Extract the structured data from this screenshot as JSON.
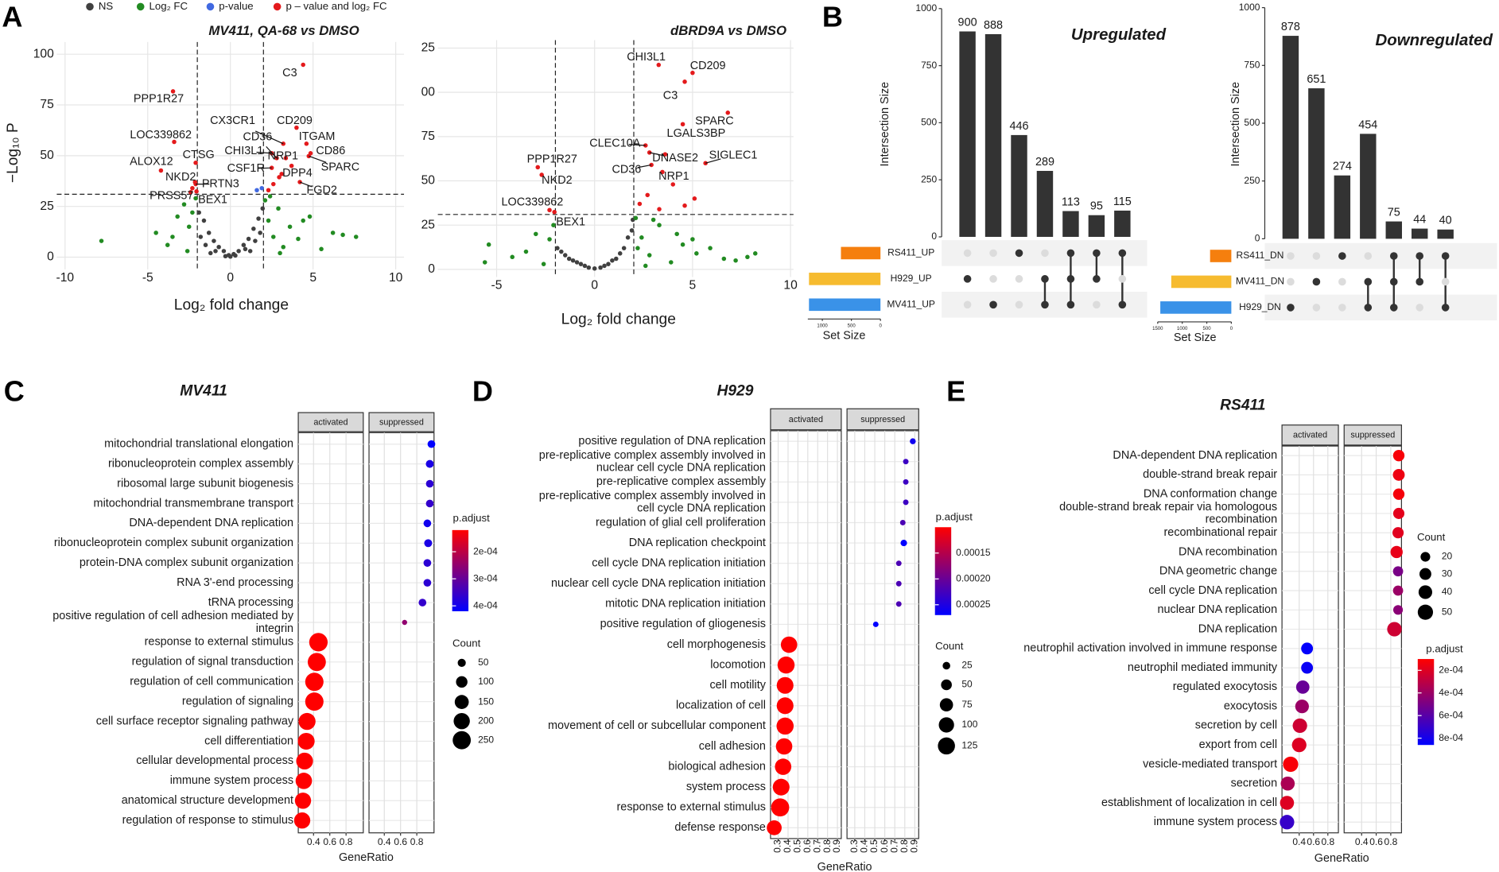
{
  "panel_labels": [
    "A",
    "B",
    "C",
    "D",
    "E"
  ],
  "chart_data": [
    {
      "type": "volcano",
      "title": "MV411, QA-68 vs DMSO",
      "xlabel": "Log₂ fold change",
      "ylabel": "−Log₁₀ P",
      "xlim": [
        -10.5,
        10.5
      ],
      "ylim": [
        -6,
        106
      ],
      "xticks": [
        -10,
        -5,
        0,
        5,
        10
      ],
      "yticks": [
        0,
        25,
        50,
        75,
        100
      ],
      "vlines": [
        -2,
        2
      ],
      "hline": 31,
      "grid": true,
      "legend": "top",
      "series": [
        {
          "name": "NS",
          "color": "#404040",
          "x": [
            -1.9,
            -1.6,
            -1.3,
            -1,
            -0.7,
            -0.4,
            -0.1,
            0.2,
            0.5,
            0.8,
            1.1,
            1.4,
            1.7,
            1.95,
            -1.5,
            -0.9,
            -0.3,
            0.3,
            0.9,
            1.5,
            -1.8,
            1.8,
            0,
            -1.2,
            1.2
          ],
          "values": [
            22,
            18,
            12,
            8,
            5,
            3,
            1,
            1.5,
            3,
            6,
            9,
            14,
            19,
            24,
            6,
            3,
            0.5,
            0.8,
            4,
            8,
            10,
            12,
            0.3,
            2,
            3
          ]
        },
        {
          "name": "Log₂ FC",
          "color": "#228b22",
          "x": [
            -7.8,
            -4.5,
            -3.8,
            -3.2,
            -2.8,
            -2.5,
            -2.3,
            -2.1,
            2.1,
            2.3,
            2.6,
            2.9,
            3.2,
            3.6,
            4.1,
            4.8,
            5.5,
            6.2,
            6.8,
            7.6,
            -2.6,
            3.0,
            4.4,
            2.4,
            -3.5
          ],
          "values": [
            8,
            12,
            6,
            20,
            26,
            15,
            22,
            29,
            28,
            18,
            10,
            24,
            5,
            15,
            9,
            20,
            4,
            12,
            11,
            10,
            3,
            2,
            18,
            30,
            10
          ]
        },
        {
          "name": "p-value",
          "color": "#4169e1",
          "x": [
            1.9,
            1.6
          ],
          "values": [
            34,
            33
          ]
        },
        {
          "name": "p – value and log₂ FC",
          "color": "#e41a1c",
          "x": [
            4.4,
            -3.47,
            -3.4,
            -4.2,
            -2.1,
            -2.14,
            -2.1,
            -2.4,
            -2.05,
            3.2,
            4.0,
            4.6,
            2.8,
            2.5,
            3.35,
            4.85,
            2.5,
            4.74,
            2.95,
            4.2,
            2.3,
            2.6,
            3.1,
            3.7,
            -2.3
          ],
          "values": [
            94.8,
            81.7,
            56.8,
            42.7,
            46.5,
            37,
            36,
            32,
            32.4,
            55.9,
            63.8,
            55.9,
            48.8,
            51.2,
            48.8,
            51.2,
            44,
            49.8,
            39.4,
            37,
            33,
            36,
            41,
            45,
            34
          ],
          "labels": [
            "C3",
            "PPP1R27",
            "LOC339862",
            "ALOX12",
            "CTSG",
            "NKD2",
            "PRTN3",
            "PRSS57",
            "BEX1",
            "CX3CR1",
            "CD209",
            "ITGAM",
            "CD36",
            "CHI3L1",
            "NRP1",
            "CD86",
            "CSF1R",
            "SPARC",
            "DPP4",
            "FGD2",
            null,
            null,
            null,
            null,
            null
          ]
        }
      ]
    },
    {
      "type": "volcano",
      "title": "dBRD9A vs DMSO",
      "xlabel": "Log₂ fold change",
      "xlim": [
        -8,
        10.15
      ],
      "ylim": [
        -4.3,
        129.5
      ],
      "xticks": [
        -5,
        0,
        5,
        10
      ],
      "yticks": [
        0,
        25,
        50,
        75,
        {
          "value": 100,
          "label": "00"
        },
        {
          "value": 125,
          "label": "25"
        }
      ],
      "vlines": [
        -2,
        2
      ],
      "hline": 31,
      "grid": true,
      "series": [
        {
          "color": "#404040",
          "x": [
            -1.9,
            -1.5,
            -1.1,
            -0.7,
            -0.3,
            0,
            0.3,
            0.7,
            1.1,
            1.5,
            1.9,
            -1.7,
            -0.9,
            0.9,
            1.7,
            -0.5,
            0.5,
            1.3,
            -1.3,
            1.95
          ],
          "values": [
            12,
            8,
            5,
            3,
            1,
            0.5,
            1,
            3,
            6,
            12,
            22,
            10,
            4,
            5,
            18,
            2,
            2,
            9,
            6,
            28
          ]
        },
        {
          "color": "#228b22",
          "x": [
            -5.4,
            -4.2,
            -3.5,
            -3.0,
            -2.6,
            -2.3,
            -2.1,
            2.1,
            2.4,
            2.8,
            3.3,
            3.9,
            4.5,
            5.2,
            5.9,
            6.6,
            7.2,
            7.8,
            8.2,
            -5.6,
            2.2,
            3.0,
            4.2,
            2.6,
            5.0
          ],
          "values": [
            14,
            7,
            10,
            20,
            3,
            17,
            25,
            29,
            18,
            8,
            25,
            4,
            14,
            9,
            12,
            6,
            5,
            7,
            9,
            4,
            12,
            28,
            20,
            2,
            17
          ]
        },
        {
          "color": "#e41a1c",
          "x": [
            3.27,
            5.0,
            4.6,
            6.8,
            4.5,
            2.6,
            2.8,
            5.66,
            2.9,
            3.46,
            -2.9,
            -2.7,
            -2.3,
            -2.05,
            2.3,
            2.7,
            3.3,
            4.0,
            4.6,
            5.1,
            3.6
          ],
          "values": [
            115.5,
            111,
            106,
            88.5,
            82,
            70,
            66,
            60,
            59,
            55,
            57.7,
            53.4,
            33.5,
            32.4,
            37,
            42,
            34,
            48,
            36,
            40,
            65
          ],
          "labels": [
            "CHI3L1",
            "CD209",
            "C3",
            "SPARC",
            "LGALS3BP",
            "CLEC10A",
            "DNASE2",
            "SIGLEC1",
            "CD36",
            "NRP1",
            "PPP1R27",
            "NKD2",
            "LOC339862",
            "BEX1",
            null,
            null,
            null,
            null,
            null,
            null,
            null
          ]
        }
      ]
    },
    {
      "type": "upset",
      "title": "Upregulated",
      "ylabel": "Intersection Size",
      "xlabel": "Set Size",
      "values": [
        900,
        888,
        446,
        289,
        113,
        95,
        115
      ],
      "ylim": [
        0,
        1000
      ],
      "yticks": [
        0,
        250,
        500,
        750,
        1000
      ],
      "sets": [
        "RS411_UP",
        "H929_UP",
        "MV411_UP"
      ],
      "set_colors": [
        "#f57f0e",
        "#f6bb2f",
        "#3a92e8"
      ],
      "set_sizes": [
        680,
        1230,
        1230
      ],
      "xlim": [
        0,
        1250
      ],
      "xticks": [
        0,
        500,
        1000
      ],
      "bar_color": "#333333",
      "intersections": [
        [
          "H929_UP"
        ],
        [
          "MV411_UP"
        ],
        [
          "RS411_UP"
        ],
        [
          "H929_UP",
          "MV411_UP"
        ],
        [
          "RS411_UP",
          "H929_UP",
          "MV411_UP"
        ],
        [
          "RS411_UP",
          "H929_UP"
        ],
        [
          "RS411_UP",
          "MV411_UP"
        ]
      ]
    },
    {
      "type": "upset",
      "title": "Downregulated",
      "ylabel": "Intersection Size",
      "xlabel": "Set Size",
      "values": [
        878,
        651,
        274,
        454,
        75,
        44,
        40
      ],
      "ylim": [
        0,
        1000
      ],
      "yticks": [
        0,
        250,
        500,
        750,
        1000
      ],
      "sets": [
        "RS411_DN",
        "MV411_DN",
        "H929_DN"
      ],
      "set_colors": [
        "#f57f0e",
        "#f6bb2f",
        "#3a92e8"
      ],
      "set_sizes": [
        433,
        1224,
        1447
      ],
      "xlim": [
        0,
        1500
      ],
      "xticks": [
        0,
        500,
        1000,
        1500
      ],
      "bar_color": "#333333",
      "intersections": [
        [
          "H929_DN"
        ],
        [
          "MV411_DN"
        ],
        [
          "RS411_DN"
        ],
        [
          "MV411_DN",
          "H929_DN"
        ],
        [
          "RS411_DN",
          "MV411_DN",
          "H929_DN"
        ],
        [
          "RS411_DN",
          "MV411_DN"
        ],
        [
          "RS411_DN",
          "H929_DN"
        ]
      ]
    },
    {
      "type": "dotplot",
      "title": "MV411",
      "facets": [
        "activated",
        "suppressed"
      ],
      "xlabel": "GeneRatio",
      "xlim": [
        0.212,
        1.012
      ],
      "xticks": [
        0.4,
        0.6,
        0.8
      ],
      "terms": [
        "mitochondrial translational elongation",
        "ribonucleoprotein complex assembly",
        "ribosomal large subunit biogenesis",
        "mitochondrial transmembrane transport",
        "DNA-dependent DNA replication",
        "ribonucleoprotein complex subunit organization",
        "protein-DNA complex subunit organization",
        "RNA 3'-end processing",
        "tRNA processing",
        "positive regulation of cell adhesion mediated by\nintegrin",
        "response to external stimulus",
        "regulation of signal transduction",
        "regulation of cell communication",
        "regulation of signaling",
        "cell surface receptor signaling pathway",
        "cell differentiation",
        "cellular developmental process",
        "immune system process",
        "anatomical structure development",
        "regulation of response to stimulus"
      ],
      "groups": [
        "suppressed",
        "suppressed",
        "suppressed",
        "suppressed",
        "suppressed",
        "suppressed",
        "suppressed",
        "suppressed",
        "suppressed",
        "suppressed",
        "activated",
        "activated",
        "activated",
        "activated",
        "activated",
        "activated",
        "activated",
        "activated",
        "activated",
        "activated"
      ],
      "gene_ratio": [
        0.98,
        0.96,
        0.96,
        0.96,
        0.93,
        0.94,
        0.93,
        0.93,
        0.87,
        0.65,
        0.46,
        0.44,
        0.41,
        0.41,
        0.32,
        0.31,
        0.29,
        0.28,
        0.27,
        0.26
      ],
      "count": [
        45,
        48,
        45,
        45,
        45,
        48,
        45,
        45,
        45,
        20,
        260,
        250,
        255,
        255,
        220,
        215,
        215,
        205,
        200,
        200
      ],
      "p_adjust": [
        0.00042,
        0.00039,
        0.00037,
        0.00036,
        0.0004,
        0.00039,
        0.00037,
        0.00037,
        0.00036,
        0.00025,
        0.00012,
        0.00012,
        0.00012,
        0.00012,
        0.00012,
        0.00012,
        0.00012,
        0.00012,
        0.00012,
        0.00012
      ],
      "size_legend": {
        "title": "Count",
        "values": [
          50,
          100,
          150,
          200,
          250
        ]
      },
      "color_legend": {
        "title": "p.adjust",
        "lim": [
          0.00012,
          0.00042
        ],
        "low_color": "#ff0000",
        "high_color": "#0000ff",
        "ticks": [
          {
            "value": 0.0002,
            "label": "2e-04"
          },
          {
            "value": 0.0003,
            "label": "3e-04"
          },
          {
            "value": 0.0004,
            "label": "4e-04"
          }
        ]
      }
    },
    {
      "type": "dotplot",
      "title": "H929",
      "facets": [
        "activated",
        "suppressed"
      ],
      "xlabel": "GeneRatio",
      "xlim": [
        0.2226,
        0.939
      ],
      "xticks": [
        0.3,
        0.4,
        0.5,
        0.6,
        0.7,
        0.8,
        0.9
      ],
      "rotate_ticks": true,
      "terms": [
        "positive regulation of DNA replication",
        "pre-replicative complex assembly involved in\nnuclear cell cycle DNA replication",
        "pre-replicative complex assembly",
        "pre-replicative complex assembly involved in\ncell cycle DNA replication",
        "regulation of glial cell proliferation",
        "DNA replication checkpoint",
        "cell cycle DNA replication initiation",
        "nuclear cell cycle DNA replication initiation",
        "mitotic DNA replication initiation",
        "positive regulation of gliogenesis",
        "cell morphogenesis",
        "locomotion",
        "cell motility",
        "localization of cell",
        "movement of cell or subcellular component",
        "cell adhesion",
        "biological adhesion",
        "system process",
        "response to external stimulus",
        "defense response"
      ],
      "groups": [
        "suppressed",
        "suppressed",
        "suppressed",
        "suppressed",
        "suppressed",
        "suppressed",
        "suppressed",
        "suppressed",
        "suppressed",
        "suppressed",
        "activated",
        "activated",
        "activated",
        "activated",
        "activated",
        "activated",
        "activated",
        "activated",
        "activated",
        "activated"
      ],
      "gene_ratio": [
        0.88,
        0.81,
        0.81,
        0.81,
        0.78,
        0.79,
        0.74,
        0.74,
        0.74,
        0.51,
        0.41,
        0.38,
        0.37,
        0.37,
        0.37,
        0.36,
        0.35,
        0.33,
        0.32,
        0.26
      ],
      "count": [
        15,
        13,
        13,
        13,
        13,
        18,
        13,
        13,
        13,
        13,
        115,
        125,
        120,
        120,
        125,
        115,
        115,
        120,
        140,
        95
      ],
      "p_adjust": [
        0.00026,
        0.00023,
        0.00023,
        0.00023,
        0.00022,
        0.00027,
        0.00022,
        0.00022,
        0.00022,
        0.00027,
        0.0001,
        0.0001,
        0.0001,
        0.0001,
        0.0001,
        0.0001,
        0.0001,
        0.0001,
        0.0001,
        0.0001
      ],
      "size_legend": {
        "title": "Count",
        "values": [
          25,
          50,
          75,
          100,
          125
        ]
      },
      "color_legend": {
        "title": "p.adjust",
        "lim": [
          0.0001,
          0.00027
        ],
        "low_color": "#ff0000",
        "high_color": "#0000ff",
        "ticks": [
          0.00015,
          {
            "value": 0.0002,
            "label": "0.00020"
          },
          0.00025
        ]
      }
    },
    {
      "type": "dotplot",
      "title": "RS411",
      "facets": [
        "activated",
        "suppressed"
      ],
      "xlabel": "GeneRatio",
      "xlim": [
        0.16,
        0.947
      ],
      "xticks": [
        0.4,
        0.6,
        0.8
      ],
      "terms": [
        "DNA-dependent DNA replication",
        "double-strand break repair",
        "DNA conformation change",
        "double-strand break repair via homologous\nrecombination",
        "recombinational repair",
        "DNA recombination",
        "DNA geometric change",
        "cell cycle DNA replication",
        "nuclear DNA replication",
        "DNA replication",
        "neutrophil activation involved in immune response",
        "neutrophil mediated immunity",
        "regulated exocytosis",
        "exocytosis",
        "secretion by cell",
        "export from cell",
        "vesicle-mediated transport",
        "secretion",
        "establishment of localization in cell",
        "immune system process"
      ],
      "groups": [
        "suppressed",
        "suppressed",
        "suppressed",
        "suppressed",
        "suppressed",
        "suppressed",
        "suppressed",
        "suppressed",
        "suppressed",
        "suppressed",
        "activated",
        "activated",
        "activated",
        "activated",
        "activated",
        "activated",
        "activated",
        "activated",
        "activated",
        "activated"
      ],
      "gene_ratio": [
        0.91,
        0.91,
        0.91,
        0.91,
        0.9,
        0.88,
        0.9,
        0.9,
        0.9,
        0.85,
        0.51,
        0.51,
        0.45,
        0.44,
        0.41,
        0.4,
        0.28,
        0.24,
        0.23,
        0.23
      ],
      "count": [
        28,
        30,
        28,
        27,
        27,
        32,
        22,
        22,
        20,
        45,
        30,
        30,
        38,
        40,
        45,
        45,
        50,
        42,
        42,
        45
      ],
      "p_adjust": [
        0.00012,
        0.00015,
        0.00013,
        0.00018,
        0.00019,
        0.00017,
        0.0005,
        0.0004,
        0.00045,
        0.00025,
        0.00085,
        0.00083,
        0.00055,
        0.0004,
        0.00025,
        0.0002,
        0.00012,
        0.00035,
        0.0002,
        0.0007
      ],
      "size_legend": {
        "title": "Count",
        "values": [
          20,
          30,
          40,
          50
        ]
      },
      "color_legend": {
        "title": "p.adjust",
        "lim": [
          0.0001,
          0.00086
        ],
        "low_color": "#ff0000",
        "high_color": "#0000ff",
        "ticks": [
          {
            "value": 0.0002,
            "label": "2e-04"
          },
          {
            "value": 0.0004,
            "label": "4e-04"
          },
          {
            "value": 0.0006,
            "label": "6e-04"
          },
          {
            "value": 0.0008,
            "label": "8e-04"
          }
        ]
      }
    }
  ]
}
